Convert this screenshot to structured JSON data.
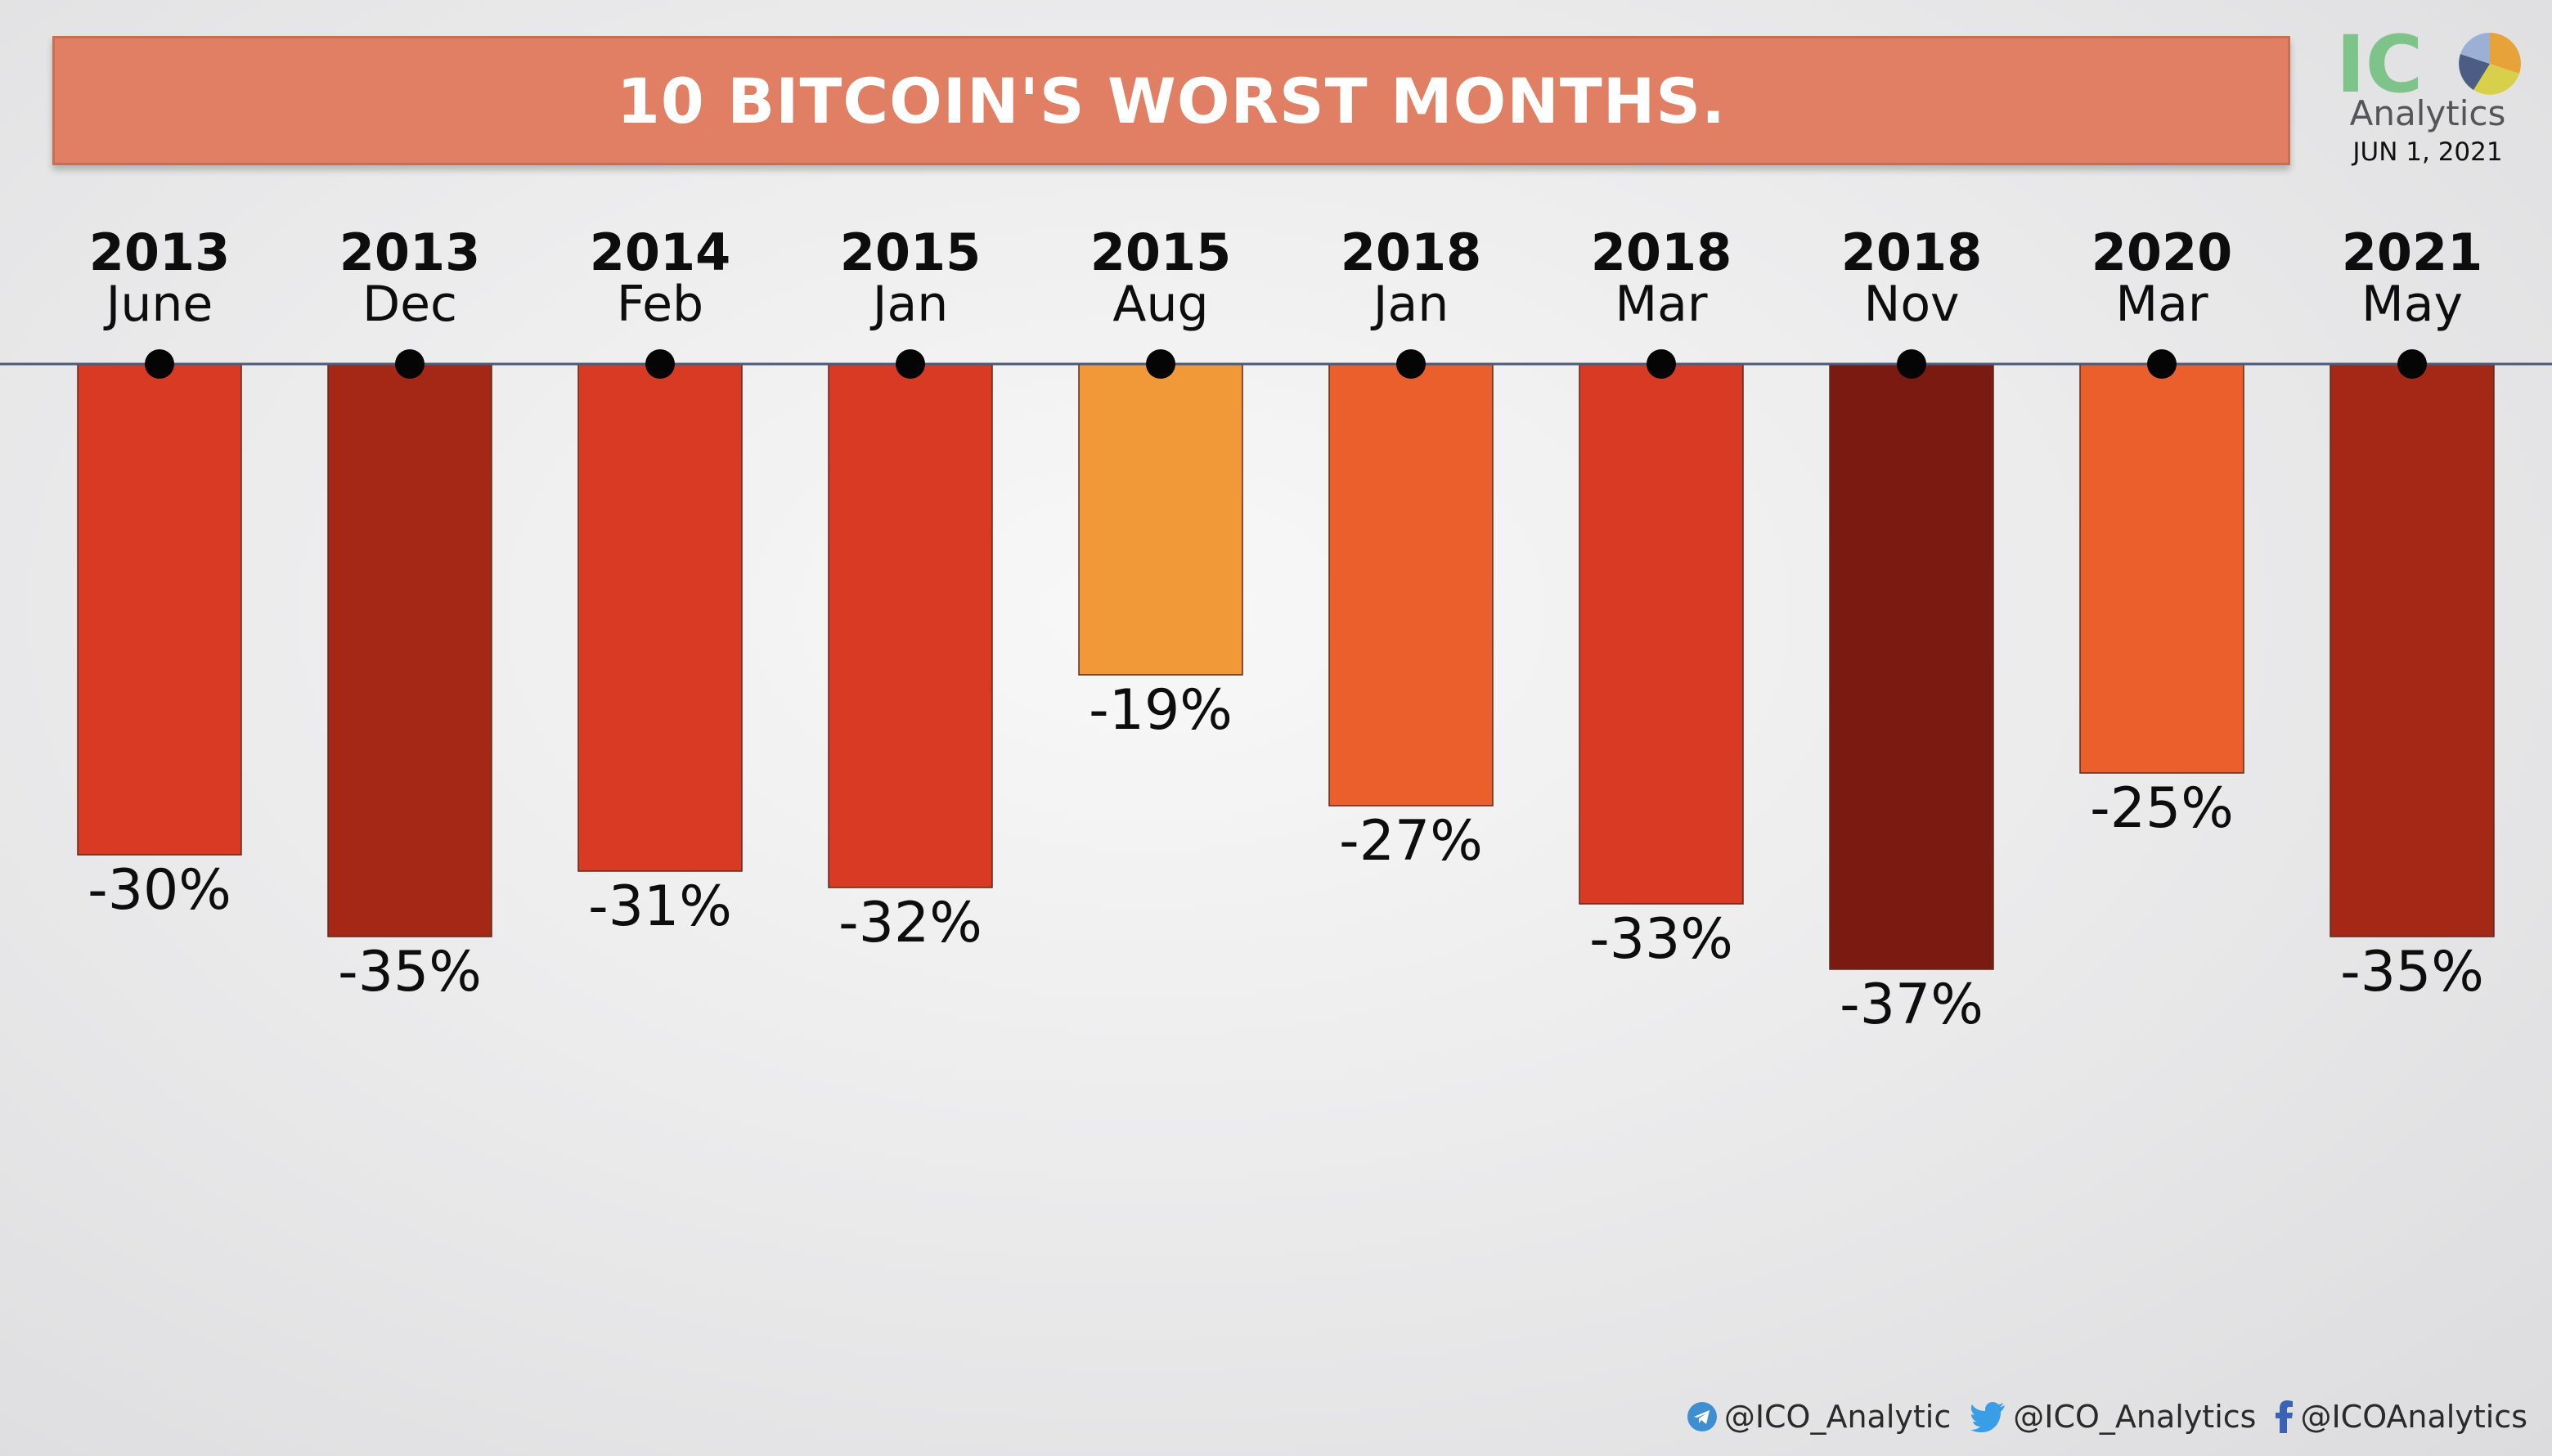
{
  "header": {
    "title": "10 BITCOIN'S WORST MONTHS."
  },
  "logo": {
    "mark_text": "IC",
    "subtitle": "Analytics",
    "date": "JUN 1, 2021"
  },
  "footer": {
    "telegram": "@ICO_Analytic",
    "twitter": "@ICO_Analytics",
    "facebook": "@ICOAnalytics"
  },
  "chart_data": {
    "type": "bar",
    "title": "10 BITCOIN'S WORST MONTHS.",
    "orientation": "downward",
    "categories": [
      {
        "year": "2013",
        "month": "June"
      },
      {
        "year": "2013",
        "month": "Dec"
      },
      {
        "year": "2014",
        "month": "Feb"
      },
      {
        "year": "2015",
        "month": "Jan"
      },
      {
        "year": "2015",
        "month": "Aug"
      },
      {
        "year": "2018",
        "month": "Jan"
      },
      {
        "year": "2018",
        "month": "Mar"
      },
      {
        "year": "2018",
        "month": "Nov"
      },
      {
        "year": "2020",
        "month": "Mar"
      },
      {
        "year": "2021",
        "month": "May"
      }
    ],
    "values": [
      -30,
      -35,
      -31,
      -32,
      -19,
      -27,
      -33,
      -37,
      -25,
      -35
    ],
    "labels": [
      "-30%",
      "-35%",
      "-31%",
      "-32%",
      "-19%",
      "-27%",
      "-33%",
      "-37%",
      "-25%",
      "-35%"
    ],
    "colors": [
      "#d93a24",
      "#a52817",
      "#d93a24",
      "#d93a24",
      "#f19838",
      "#ea5f2c",
      "#d93a24",
      "#7b1a10",
      "#ea5f2c",
      "#a52817"
    ],
    "axis_color": "#4a5a78",
    "xlabel": "",
    "ylabel": "",
    "ylim": [
      -40,
      0
    ]
  }
}
